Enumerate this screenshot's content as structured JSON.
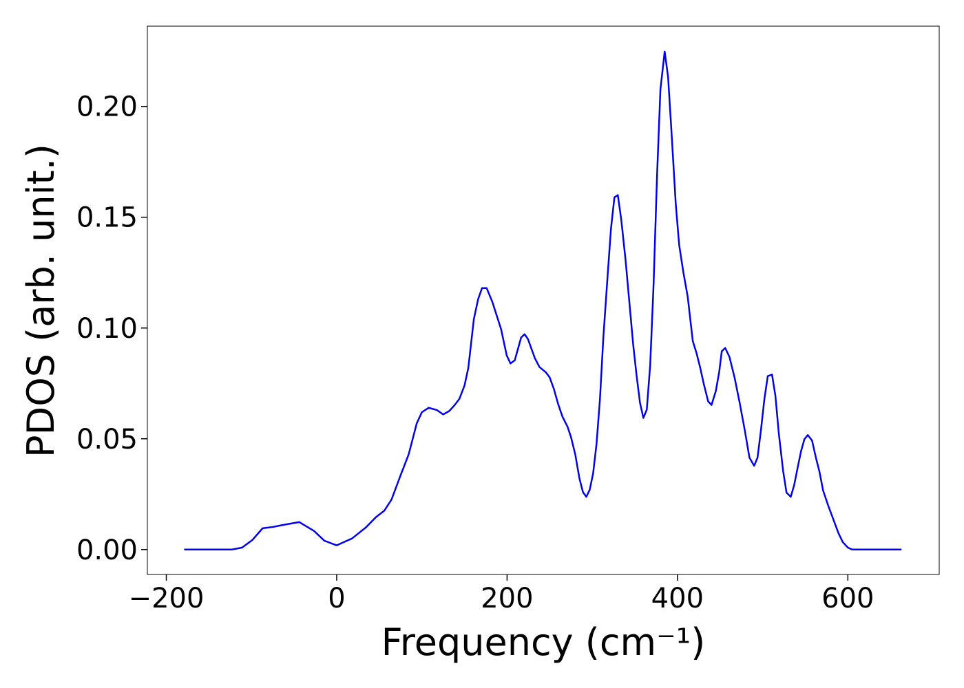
{
  "chart_data": {
    "type": "line",
    "xlabel": "Frequency (cm⁻¹)",
    "ylabel": "PDOS (arb. unit.)",
    "xlim": [
      -222.25,
      707.25
    ],
    "ylim": [
      -0.01125,
      0.23625
    ],
    "xticks": [
      {
        "value": -200,
        "label": "−200"
      },
      0,
      200,
      400,
      600
    ],
    "yticks": [
      {
        "value": 0,
        "label": "0.00"
      },
      {
        "value": 0.05,
        "label": "0.05"
      },
      {
        "value": 0.1,
        "label": "0.10"
      },
      {
        "value": 0.15,
        "label": "0.15"
      },
      {
        "value": 0.2,
        "label": "0.20"
      }
    ],
    "x": [
      -179,
      -123,
      -111,
      -99,
      -87,
      -75,
      -63,
      -44,
      -26.6,
      -14.5,
      0,
      18,
      34,
      46,
      56,
      64.4,
      74,
      84.5,
      94,
      100,
      108,
      117.5,
      125,
      132,
      138,
      144,
      150,
      154.5,
      161,
      166,
      170.6,
      176,
      182.7,
      193,
      199.6,
      204,
      209,
      216.5,
      220.5,
      224.5,
      232.6,
      238,
      245.5,
      250,
      255,
      260,
      265,
      271,
      275,
      280,
      285,
      289,
      293,
      297,
      301,
      305,
      309,
      313,
      318,
      322,
      326,
      330,
      334,
      339,
      343.7,
      348,
      352,
      356,
      360,
      364,
      368,
      372,
      376,
      380,
      385,
      389,
      393,
      398,
      402,
      407,
      412,
      418,
      422.5,
      426.5,
      431,
      436,
      440,
      445,
      449,
      452,
      456,
      461,
      467,
      473,
      479,
      484.5,
      490,
      494,
      498,
      502,
      506,
      511,
      515,
      519,
      524,
      528,
      533,
      537,
      541,
      545,
      549,
      553,
      558,
      562.5,
      566.6,
      571,
      577,
      583,
      589,
      594,
      600,
      605,
      663
    ],
    "series": [
      {
        "name": "PDOS",
        "color": "#0000ee",
        "values": [
          0,
          0,
          0.0009,
          0.0043,
          0.0096,
          0.0102,
          0.0111,
          0.0124,
          0.0084,
          0.004,
          0.0019,
          0.005,
          0.0099,
          0.0146,
          0.0176,
          0.0226,
          0.0325,
          0.043,
          0.057,
          0.062,
          0.064,
          0.063,
          0.061,
          0.0625,
          0.065,
          0.068,
          0.074,
          0.082,
          0.104,
          0.113,
          0.118,
          0.118,
          0.1118,
          0.0994,
          0.0876,
          0.084,
          0.0854,
          0.0957,
          0.0972,
          0.095,
          0.0864,
          0.0824,
          0.08,
          0.0777,
          0.0724,
          0.0656,
          0.06,
          0.0554,
          0.0508,
          0.043,
          0.032,
          0.026,
          0.0238,
          0.027,
          0.0344,
          0.0477,
          0.0678,
          0.0957,
          0.1235,
          0.145,
          0.159,
          0.16,
          0.149,
          0.131,
          0.111,
          0.0926,
          0.0786,
          0.0663,
          0.0594,
          0.0632,
          0.0833,
          0.12,
          0.1684,
          0.2077,
          0.2248,
          0.2133,
          0.1885,
          0.156,
          0.1375,
          0.125,
          0.1142,
          0.0941,
          0.0885,
          0.0824,
          0.0746,
          0.0669,
          0.0653,
          0.0715,
          0.0802,
          0.0895,
          0.091,
          0.087,
          0.0777,
          0.0663,
          0.0539,
          0.0415,
          0.0378,
          0.0415,
          0.0539,
          0.0678,
          0.0783,
          0.079,
          0.0693,
          0.0523,
          0.0356,
          0.0257,
          0.0238,
          0.0291,
          0.0368,
          0.0443,
          0.0498,
          0.0517,
          0.0492,
          0.0415,
          0.0353,
          0.0266,
          0.0198,
          0.0136,
          0.0074,
          0.0034,
          0.0009,
          0,
          0
        ]
      }
    ]
  }
}
